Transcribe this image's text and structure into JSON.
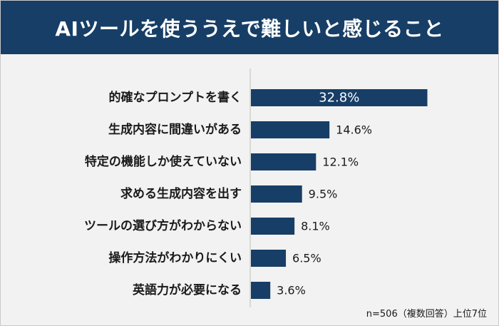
{
  "title": "AIツールを使ううえで難しいと感じること",
  "note": "n=506（複数回答）上位7位",
  "colors": {
    "header": "#173e66",
    "bar": "#173e66",
    "background": "#f2f2f2"
  },
  "chart_data": {
    "type": "bar",
    "orientation": "horizontal",
    "title": "AIツールを使ううえで難しいと感じること",
    "categories": [
      "的確なプロンプトを書く",
      "生成内容に間違いがある",
      "特定の機能しか使えていない",
      "求める生成内容を出す",
      "ツールの選び方がわからない",
      "操作方法がわかりにくい",
      "英語力が必要になる"
    ],
    "values": [
      32.8,
      14.6,
      12.1,
      9.5,
      8.1,
      6.5,
      3.6
    ],
    "value_labels": [
      "32.8%",
      "14.6%",
      "12.1%",
      "9.5%",
      "8.1%",
      "6.5%",
      "3.6%"
    ],
    "unit": "%",
    "xlim": [
      0,
      33
    ],
    "grid": false,
    "legend": "none"
  }
}
